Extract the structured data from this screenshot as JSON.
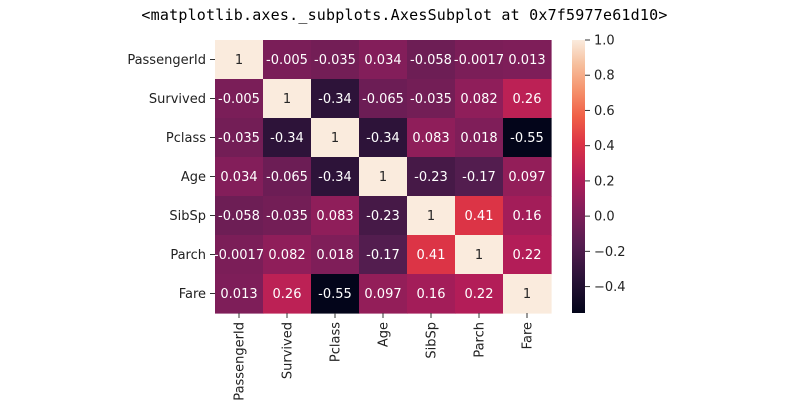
{
  "output_text": "<matplotlib.axes._subplots.AxesSubplot at 0x7f5977e61d10>",
  "chart_data": {
    "type": "heatmap",
    "variables": [
      "PassengerId",
      "Survived",
      "Pclass",
      "Age",
      "SibSp",
      "Parch",
      "Fare"
    ],
    "matrix": [
      [
        1,
        -0.005,
        -0.035,
        0.034,
        -0.058,
        -0.0017,
        0.013
      ],
      [
        -0.005,
        1,
        -0.34,
        -0.065,
        -0.035,
        0.082,
        0.26
      ],
      [
        -0.035,
        -0.34,
        1,
        -0.34,
        0.083,
        0.018,
        -0.55
      ],
      [
        0.034,
        -0.065,
        -0.34,
        1,
        -0.23,
        -0.17,
        0.097
      ],
      [
        -0.058,
        -0.035,
        0.083,
        -0.23,
        1,
        0.41,
        0.16
      ],
      [
        -0.0017,
        0.082,
        0.018,
        -0.17,
        0.41,
        1,
        0.22
      ],
      [
        0.013,
        0.26,
        -0.55,
        0.097,
        0.16,
        0.22,
        1
      ]
    ],
    "colormap": "rocket",
    "annotations": true,
    "vmin": -0.55,
    "vmax": 1.0,
    "colorbar_ticks": [
      1.0,
      0.8,
      0.6,
      0.4,
      0.2,
      0.0,
      -0.2,
      -0.4
    ],
    "colorbar_tick_labels": [
      "1.0",
      "0.8",
      "0.6",
      "0.4",
      "0.2",
      "0.0",
      "−0.2",
      "−0.4"
    ],
    "colorbar_position": "right"
  }
}
